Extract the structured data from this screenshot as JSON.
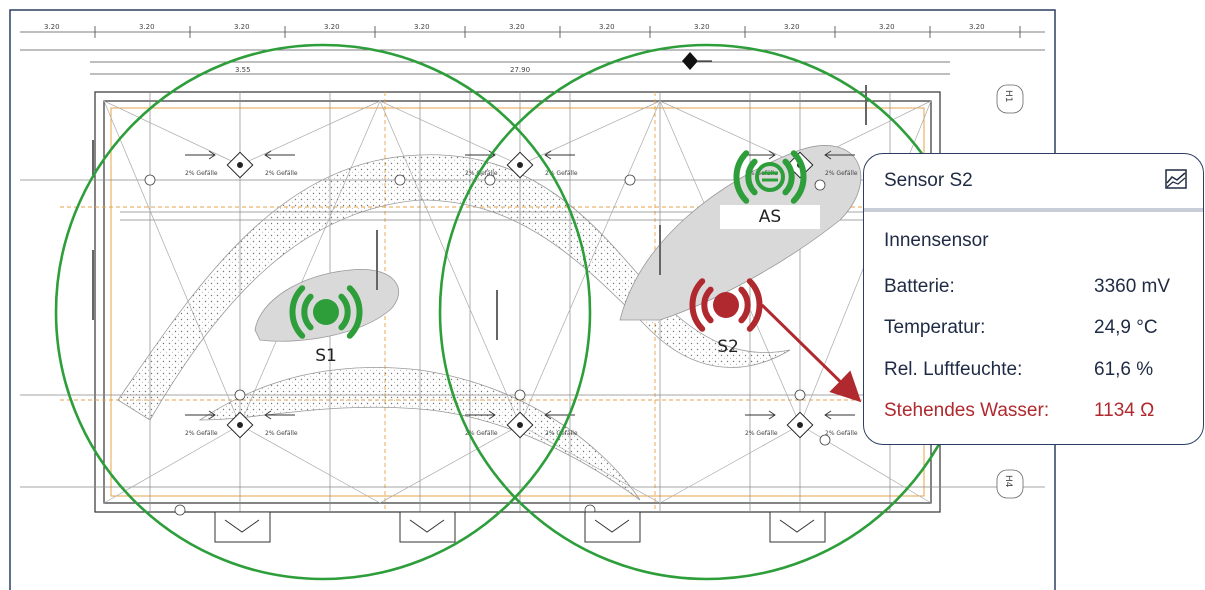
{
  "plan": {
    "dimension_label": "3.20",
    "top_labels": {
      "span_a": "3.55",
      "span_b": "27.90"
    },
    "axis_labels": {
      "h1": "H1",
      "h4": "H4"
    },
    "drain_label": "2% Gefälle"
  },
  "sensors": [
    {
      "id": "S1",
      "label": "S1",
      "status": "ok",
      "color": "#2e9e3b"
    },
    {
      "id": "S2",
      "label": "S2",
      "status": "alert",
      "color": "#b0292e"
    },
    {
      "id": "AS",
      "label": "AS",
      "status": "ok",
      "color": "#2e9e3b"
    }
  ],
  "popup": {
    "title": "Sensor S2",
    "icon": "chart-icon",
    "subtitle": "Innensensor",
    "rows": [
      {
        "key": "Batterie:",
        "value": "3360 mV",
        "alert": false
      },
      {
        "key": "Temperatur:",
        "value": "24,9 °C",
        "alert": false
      },
      {
        "key": "Rel. Luftfeuchte:",
        "value": "61,6 %",
        "alert": false
      },
      {
        "key": "Stehendes Wasser:",
        "value": "1134 Ω",
        "alert": true
      }
    ]
  },
  "colors": {
    "green": "#2e9e3b",
    "red": "#b0292e",
    "navy": "#2c3e63"
  }
}
